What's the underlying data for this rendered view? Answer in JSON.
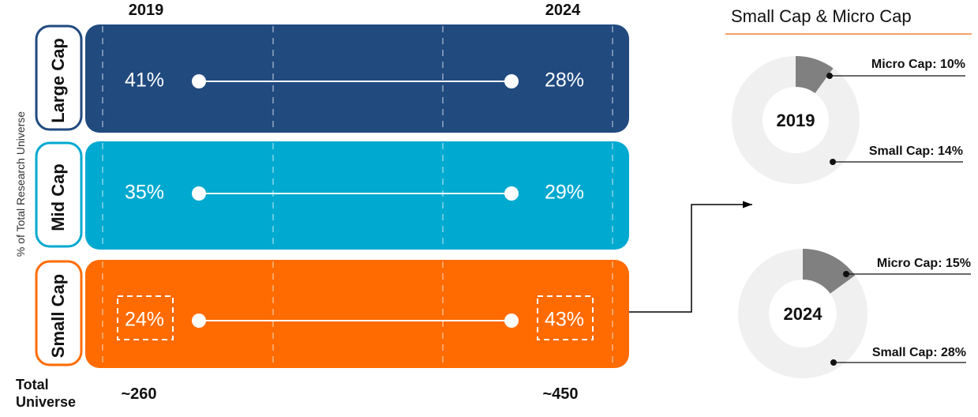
{
  "chart_data": [
    {
      "type": "line",
      "ylabel": "% of Total Research Universe",
      "x": [
        "2019",
        "2024"
      ],
      "series": [
        {
          "name": "Large Cap",
          "values": [
            41,
            28
          ],
          "labels": [
            "41%",
            "28%"
          ],
          "color": "#214a7f"
        },
        {
          "name": "Mid Cap",
          "values": [
            35,
            29
          ],
          "labels": [
            "35%",
            "29%"
          ],
          "color": "#00a9cf"
        },
        {
          "name": "Small Cap",
          "values": [
            24,
            43
          ],
          "labels": [
            "24%",
            "43%"
          ],
          "color": "#ff6b00",
          "highlighted": true
        }
      ],
      "total_universe": {
        "label": "Total Universe",
        "values": [
          "~260",
          "~450"
        ]
      }
    },
    {
      "type": "pie",
      "title": "Small Cap & Micro Cap",
      "center_label": "2019",
      "slices": [
        {
          "label": "Micro Cap: 10%",
          "value": 10,
          "color": "#808080"
        },
        {
          "label": "Small Cap: 14%",
          "value": 14,
          "color": "#f0f0f0"
        }
      ]
    },
    {
      "type": "pie",
      "center_label": "2024",
      "slices": [
        {
          "label": "Micro Cap: 15%",
          "value": 15,
          "color": "#808080"
        },
        {
          "label": "Small Cap: 28%",
          "value": 28,
          "color": "#f0f0f0"
        }
      ]
    }
  ],
  "colors": {
    "large_cap": "#214a7f",
    "mid_cap": "#00a9cf",
    "small_cap": "#ff6b00",
    "title_rule": "#f2a36b",
    "donut_micro": "#808080",
    "donut_small": "#f0f0f0"
  }
}
